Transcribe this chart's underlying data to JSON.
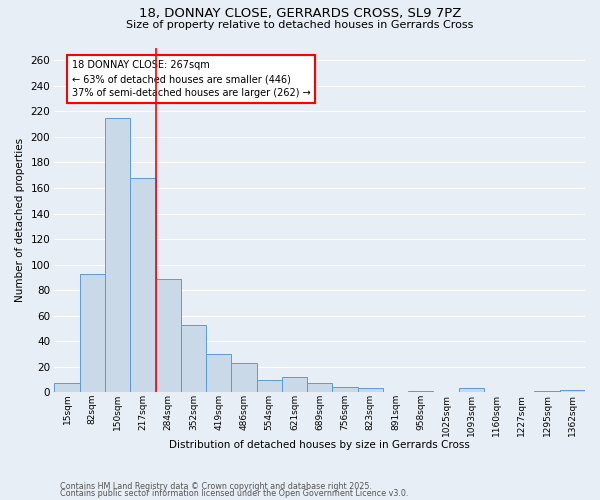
{
  "title1": "18, DONNAY CLOSE, GERRARDS CROSS, SL9 7PZ",
  "title2": "Size of property relative to detached houses in Gerrards Cross",
  "xlabel": "Distribution of detached houses by size in Gerrards Cross",
  "ylabel": "Number of detached properties",
  "categories": [
    "15sqm",
    "82sqm",
    "150sqm",
    "217sqm",
    "284sqm",
    "352sqm",
    "419sqm",
    "486sqm",
    "554sqm",
    "621sqm",
    "689sqm",
    "756sqm",
    "823sqm",
    "891sqm",
    "958sqm",
    "1025sqm",
    "1093sqm",
    "1160sqm",
    "1227sqm",
    "1295sqm",
    "1362sqm"
  ],
  "values": [
    7,
    93,
    215,
    168,
    89,
    53,
    30,
    23,
    10,
    12,
    7,
    4,
    3,
    0,
    1,
    0,
    3,
    0,
    0,
    1,
    2
  ],
  "bar_color": "#c9d9e8",
  "bar_edge_color": "#5b9bd5",
  "vline_color": "red",
  "ylim": [
    0,
    270
  ],
  "yticks": [
    0,
    20,
    40,
    60,
    80,
    100,
    120,
    140,
    160,
    180,
    200,
    220,
    240,
    260
  ],
  "annotation_text": "18 DONNAY CLOSE: 267sqm\n← 63% of detached houses are smaller (446)\n37% of semi-detached houses are larger (262) →",
  "annotation_box_color": "white",
  "annotation_box_edge": "red",
  "bg_color": "#e8eef5",
  "grid_color": "white",
  "footer1": "Contains HM Land Registry data © Crown copyright and database right 2025.",
  "footer2": "Contains public sector information licensed under the Open Government Licence v3.0."
}
